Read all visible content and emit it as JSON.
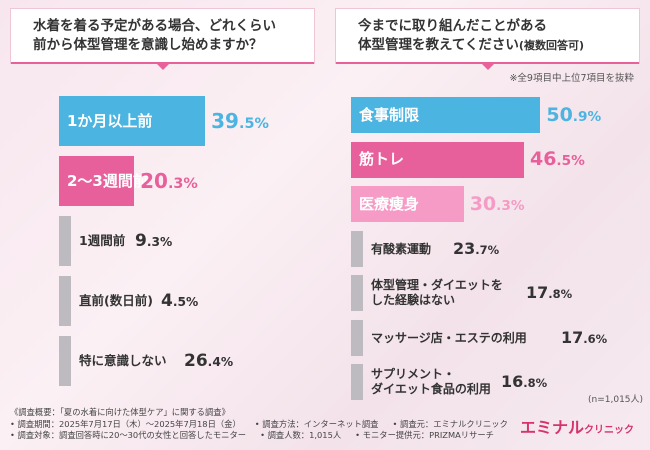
{
  "left": {
    "question_lines": [
      "水着を着る予定がある場合、どれくらい",
      "前から体型管理を意識し始めますか？"
    ]
  },
  "right": {
    "question_line1": "今までに取り組んだことがある",
    "question_line2": "体型管理を教えてください",
    "question_suffix": "(複数回答可)",
    "note": "※全9項目中上位7項目を抜粋"
  },
  "sample_size": "(n=1,015人)",
  "footer": {
    "row1": [
      "《調査概要：「夏の水着に向けた体型ケア」に関する調査》"
    ],
    "row2": [
      "• 調査期間：2025年7月17日（木）〜2025年7月18日（金）",
      "• 調査方法：インターネット調査",
      "• 調査元：エミナルクリニック"
    ],
    "row3": [
      "• 調査対象：調査回答時に20〜30代の女性と回答したモニター",
      "• 調査人数：1,015人",
      "• モニター提供元：PRIZMAリサーチ"
    ]
  },
  "logo": {
    "main": "エミナル",
    "sub": "クリニック"
  },
  "colors": {
    "blue": "#4bb4e0",
    "pink": "#e8609b",
    "light_pink": "#f59bc6",
    "gray": "#bdbbc0",
    "accent": "#e8619b"
  },
  "chart_data": [
    {
      "type": "bar",
      "orientation": "horizontal",
      "categories": [
        "1か月以上前",
        "2〜3週間前",
        "1週間前",
        "直前(数日前)",
        "特に意識しない"
      ],
      "values": [
        39.5,
        20.3,
        9.3,
        4.5,
        26.4
      ],
      "value_labels": [
        {
          "int": "39",
          "dec": ".5%"
        },
        {
          "int": "20",
          "dec": ".3%"
        },
        {
          "int": "9",
          "dec": ".3%"
        },
        {
          "int": "4",
          "dec": ".5%"
        },
        {
          "int": "26",
          "dec": ".4%"
        }
      ],
      "bar_colors": [
        "blue",
        "pink",
        "gray",
        "gray",
        "gray"
      ]
    },
    {
      "type": "bar",
      "orientation": "horizontal",
      "categories": [
        "食事制限",
        "筋トレ",
        "医療痩身",
        "有酸素運動",
        "体型管理・ダイエットを\nした経験はない",
        "マッサージ店・エステの利用",
        "サプリメント・\nダイエット食品の利用"
      ],
      "values": [
        50.9,
        46.5,
        30.3,
        23.7,
        17.8,
        17.6,
        16.8
      ],
      "value_labels": [
        {
          "int": "50",
          "dec": ".9%"
        },
        {
          "int": "46",
          "dec": ".5%"
        },
        {
          "int": "30",
          "dec": ".3%"
        },
        {
          "int": "23",
          "dec": ".7%"
        },
        {
          "int": "17",
          "dec": ".8%"
        },
        {
          "int": "17",
          "dec": ".6%"
        },
        {
          "int": "16",
          "dec": ".8%"
        }
      ],
      "bar_colors": [
        "blue",
        "pink",
        "light_pink",
        "gray",
        "gray",
        "gray",
        "gray"
      ]
    }
  ]
}
